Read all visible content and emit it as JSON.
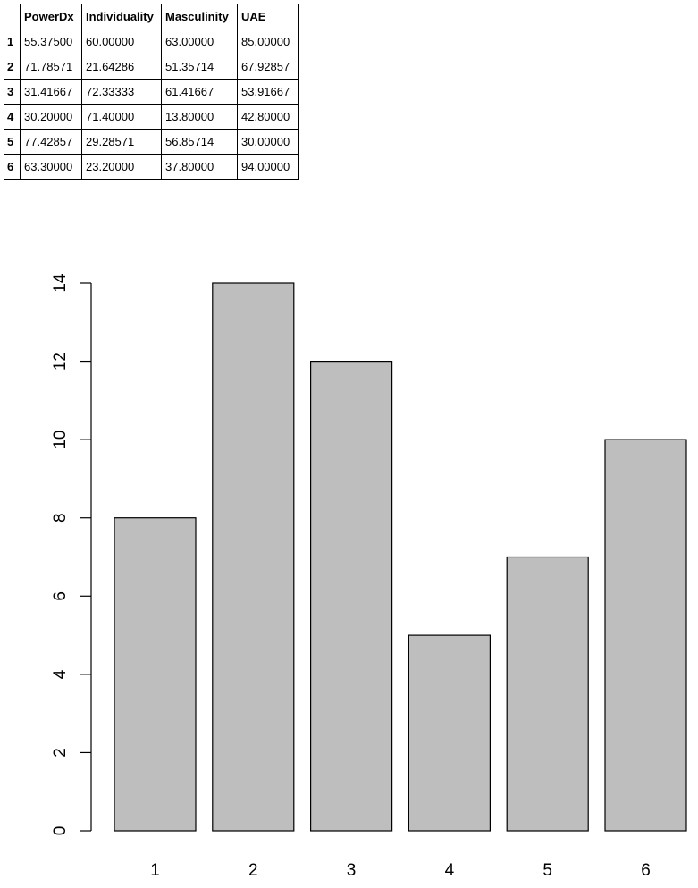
{
  "table": {
    "columns": [
      "PowerDx",
      "Individuality",
      "Masculinity",
      "UAE"
    ],
    "rows": [
      {
        "name": "1",
        "values": [
          "55.37500",
          "60.00000",
          "63.00000",
          "85.00000"
        ]
      },
      {
        "name": "2",
        "values": [
          "71.78571",
          "21.64286",
          "51.35714",
          "67.92857"
        ]
      },
      {
        "name": "3",
        "values": [
          "31.41667",
          "72.33333",
          "61.41667",
          "53.91667"
        ]
      },
      {
        "name": "4",
        "values": [
          "30.20000",
          "71.40000",
          "13.80000",
          "42.80000"
        ]
      },
      {
        "name": "5",
        "values": [
          "77.42857",
          "29.28571",
          "56.85714",
          "30.00000"
        ]
      },
      {
        "name": "6",
        "values": [
          "63.30000",
          "23.20000",
          "37.80000",
          "94.00000"
        ]
      }
    ]
  },
  "chart_data": {
    "type": "bar",
    "categories": [
      "1",
      "2",
      "3",
      "4",
      "5",
      "6"
    ],
    "values": [
      8,
      14,
      12,
      5,
      7,
      10
    ],
    "title": "",
    "xlabel": "",
    "ylabel": "",
    "ylim": [
      0,
      14
    ],
    "yticks": [
      0,
      2,
      4,
      6,
      8,
      10,
      12,
      14
    ],
    "bar_color": "#bebebe",
    "bar_edge_color": "#000000",
    "grid": false,
    "legend": "none"
  }
}
